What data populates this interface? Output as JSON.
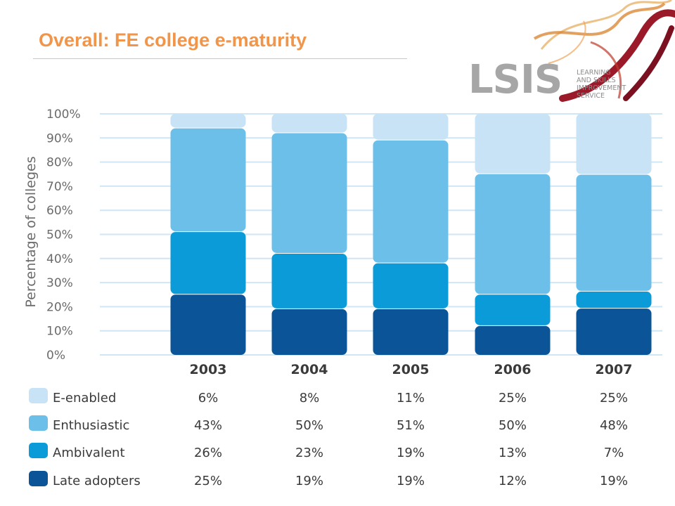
{
  "slide": {
    "title": "Overall: FE college e-maturity"
  },
  "brand": {
    "mark": "LSIS",
    "tagline": "LEARNING\nAND SKILLS\nIMPROVEMENT\nSERVICE"
  },
  "chart_data": {
    "type": "bar",
    "stacked": true,
    "title": "",
    "xlabel": "",
    "ylabel": "Percentage of colleges",
    "ylim": [
      0,
      100
    ],
    "yticks": [
      "0%",
      "10%",
      "20%",
      "30%",
      "40%",
      "50%",
      "60%",
      "70%",
      "80%",
      "90%",
      "100%"
    ],
    "grid": true,
    "categories": [
      "2003",
      "2004",
      "2005",
      "2006",
      "2007"
    ],
    "series": [
      {
        "name": "E-enabled",
        "color": "#c8e3f5",
        "values": [
          6,
          8,
          11,
          25,
          25
        ],
        "labels": [
          "6%",
          "8%",
          "11%",
          "25%",
          "25%"
        ]
      },
      {
        "name": "Enthusiastic",
        "color": "#6cbfe8",
        "values": [
          43,
          50,
          51,
          50,
          48
        ],
        "labels": [
          "43%",
          "50%",
          "51%",
          "50%",
          "48%"
        ]
      },
      {
        "name": "Ambivalent",
        "color": "#0c9bd9",
        "values": [
          26,
          23,
          19,
          13,
          7
        ],
        "labels": [
          "26%",
          "23%",
          "19%",
          "13%",
          "7%"
        ]
      },
      {
        "name": "Late adopters",
        "color": "#0a5497",
        "values": [
          25,
          19,
          19,
          12,
          19
        ],
        "labels": [
          "25%",
          "19%",
          "19%",
          "12%",
          "19%"
        ]
      }
    ],
    "legend": "table-below"
  }
}
